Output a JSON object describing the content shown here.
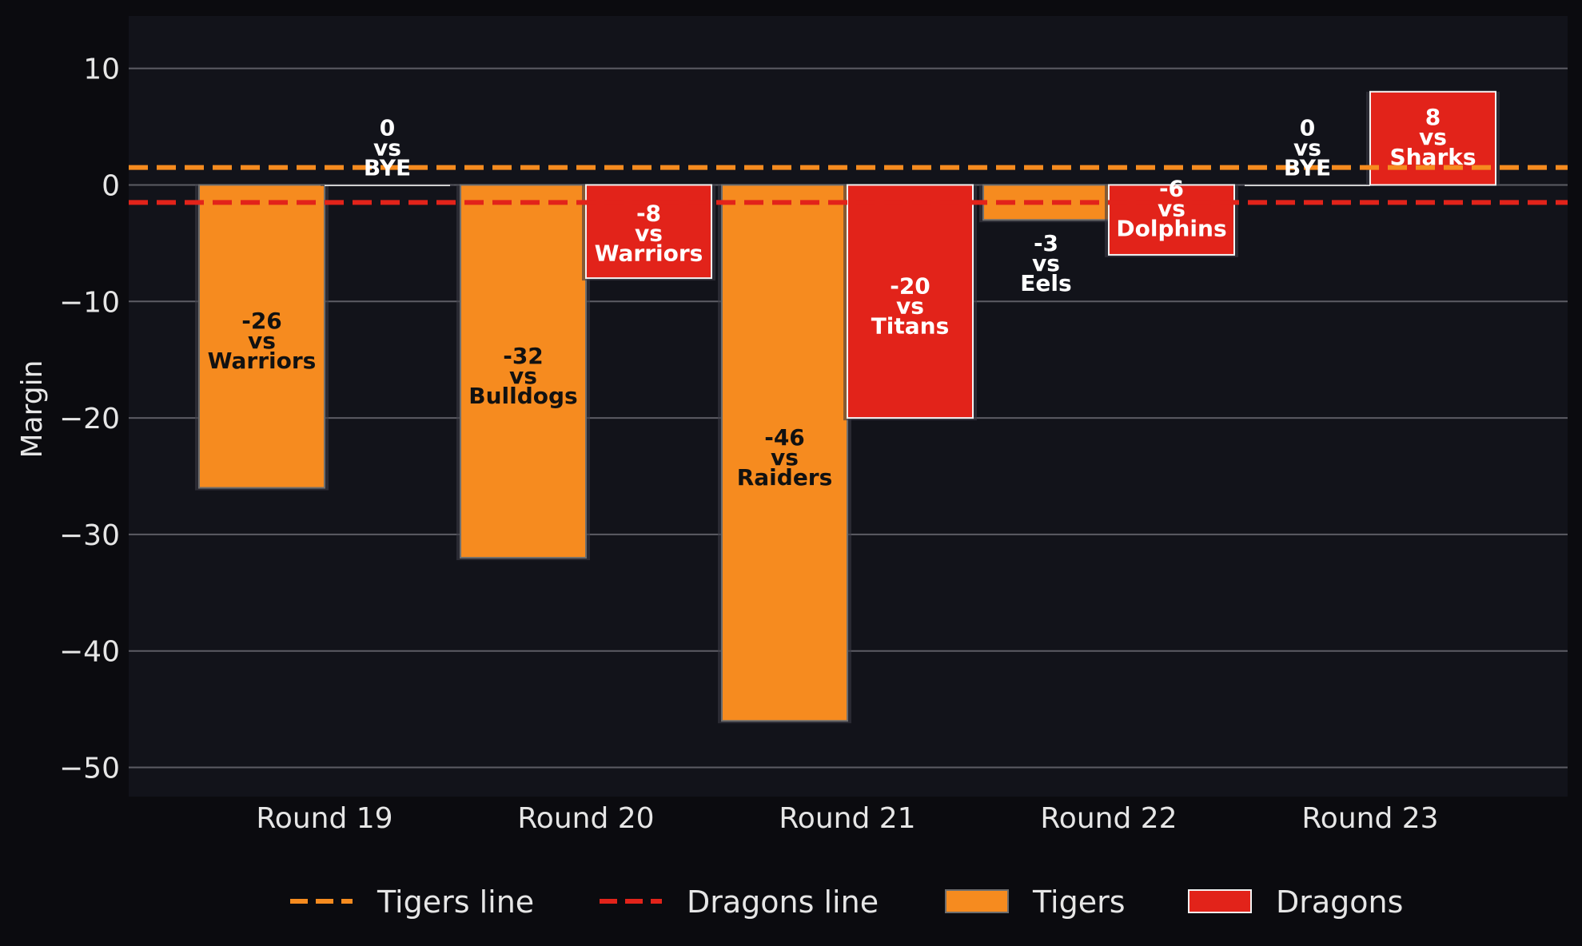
{
  "chart_data": {
    "type": "bar",
    "ylabel": "Margin",
    "ylim": [
      -52.5,
      14.5
    ],
    "yticks": [
      10,
      0,
      -10,
      -20,
      -30,
      -40,
      -50
    ],
    "ytick_labels": [
      "10",
      "0",
      "−10",
      "−20",
      "−30",
      "−40",
      "−50"
    ],
    "grid": "y",
    "categories": [
      "Round 19",
      "Round 20",
      "Round 21",
      "Round 22",
      "Round 23"
    ],
    "series": [
      {
        "name": "Tigers",
        "color": "#f68b1f",
        "values": [
          -26,
          -32,
          -46,
          -3,
          0
        ],
        "opponents": [
          "Warriors",
          "Bulldogs",
          "Raiders",
          "Eels",
          "BYE"
        ]
      },
      {
        "name": "Dragons",
        "color": "#e2231a",
        "values": [
          0,
          -8,
          -20,
          -6,
          8
        ],
        "opponents": [
          "BYE",
          "Warriors",
          "Titans",
          "Dolphins",
          "Sharks"
        ]
      }
    ],
    "reference_lines": [
      {
        "name": "Tigers line",
        "value": 1.5,
        "color": "#f68b1f",
        "style": "dashed"
      },
      {
        "name": "Dragons line",
        "value": -1.5,
        "color": "#e2231a",
        "style": "dashed"
      }
    ],
    "vs_word": "vs",
    "legend_placement": "bottom-center",
    "legend": [
      "Tigers line",
      "Dragons line",
      "Tigers",
      "Dragons"
    ]
  }
}
